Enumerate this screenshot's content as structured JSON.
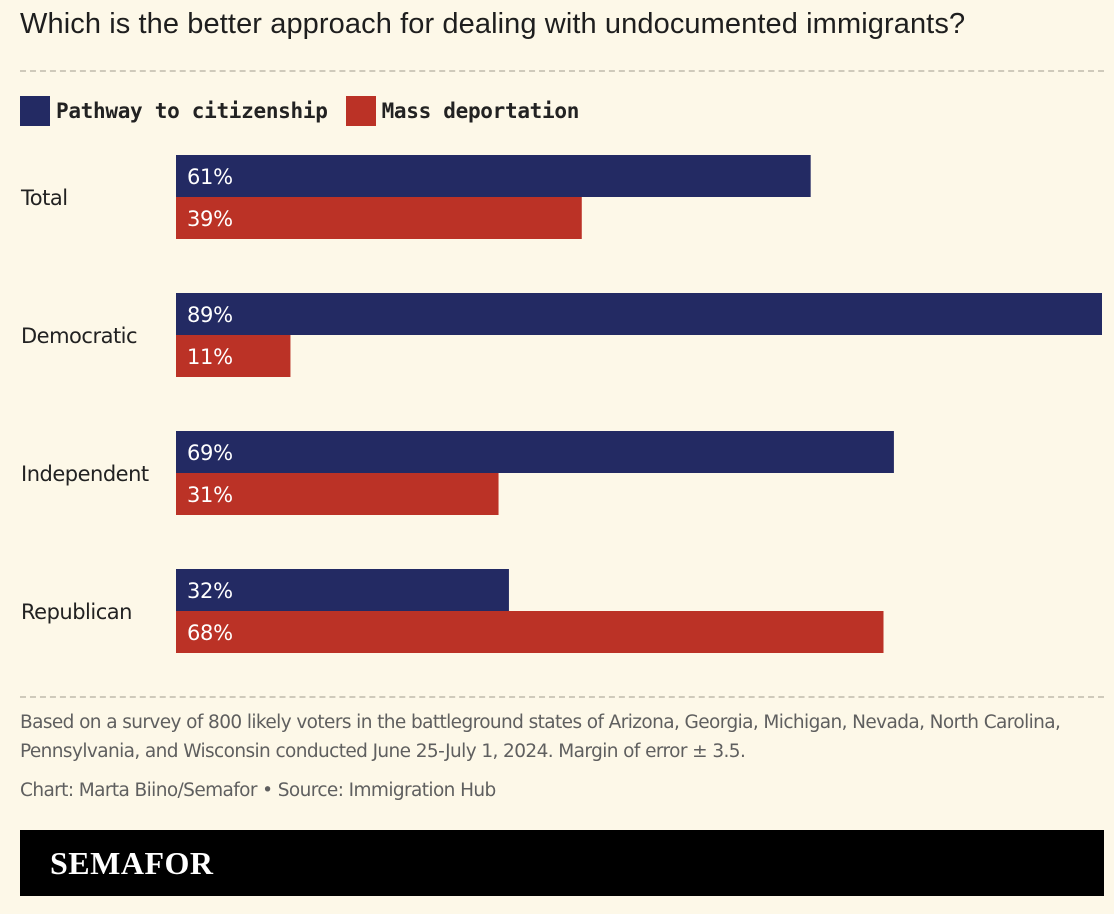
{
  "chart_data": {
    "type": "bar",
    "orientation": "horizontal",
    "title": "Which is the better approach for dealing with undocumented immigrants?",
    "categories": [
      "Total",
      "Democratic",
      "Independent",
      "Republican"
    ],
    "series": [
      {
        "name": "Pathway to citizenship",
        "color": "#232a63",
        "values": [
          61,
          89,
          69,
          32
        ],
        "labels": [
          "61%",
          "89%",
          "69%",
          "32%"
        ]
      },
      {
        "name": "Mass deportation",
        "color": "#bb3226",
        "values": [
          39,
          11,
          31,
          68
        ],
        "labels": [
          "39%",
          "11%",
          "31%",
          "68%"
        ]
      }
    ],
    "xlim": [
      0,
      89
    ],
    "grid": false,
    "legend": "top-left",
    "note": "Based on a survey of 800 likely voters in the battleground states of Arizona, Georgia, Michigan, Nevada, North Carolina, Pennsylvania, and Wisconsin conducted June 25-July 1, 2024. Margin of error ± 3.5.",
    "credit": "Chart: Marta Biino/Semafor • Source: Immigration Hub"
  },
  "brand": "SEMAFOR"
}
